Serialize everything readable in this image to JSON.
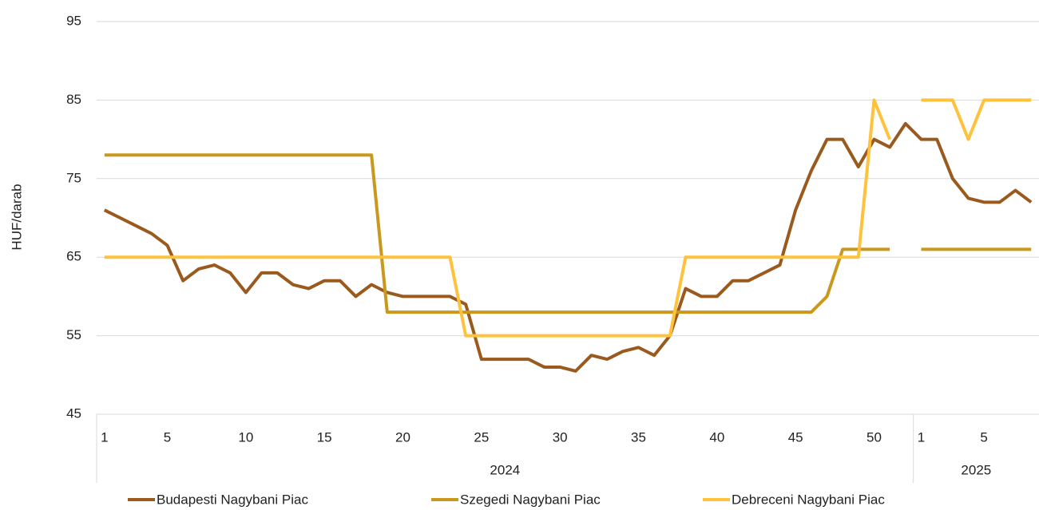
{
  "chart_data": {
    "type": "line",
    "y_label": "HUF/darab",
    "categories": [
      "1",
      null,
      null,
      null,
      "5",
      null,
      null,
      null,
      null,
      "10",
      null,
      null,
      null,
      null,
      "15",
      null,
      null,
      null,
      null,
      "20",
      null,
      null,
      null,
      null,
      "25",
      null,
      null,
      null,
      null,
      "30",
      null,
      null,
      null,
      null,
      "35",
      null,
      null,
      null,
      null,
      "40",
      null,
      null,
      null,
      null,
      "45",
      null,
      null,
      null,
      null,
      "50",
      null,
      null,
      "1",
      null,
      null,
      null,
      "5",
      null,
      null,
      null
    ],
    "x_groups": [
      {
        "label": "2024",
        "span": 52
      },
      {
        "label": "2025",
        "span": 8
      }
    ],
    "series": [
      {
        "name": "Budapesti Nagybani Piac",
        "color": "#9a5a1e",
        "values": [
          71,
          70,
          69,
          68,
          66.5,
          62,
          63.5,
          64,
          63,
          60.5,
          63,
          63,
          61.5,
          61,
          62,
          62,
          60,
          61.5,
          60.5,
          60,
          60,
          60,
          60,
          59,
          52,
          52,
          52,
          52,
          51,
          51,
          50.5,
          52.5,
          52,
          53,
          53.5,
          52.5,
          55,
          61,
          60,
          60,
          62,
          62,
          63,
          64,
          71,
          76,
          80,
          80,
          76.5,
          80,
          79,
          82,
          80,
          80,
          75,
          72.5,
          72,
          72,
          73.5,
          72
        ]
      },
      {
        "name": "Szegedi Nagybani Piac",
        "color": "#c9981c",
        "values": [
          78,
          78,
          78,
          78,
          78,
          78,
          78,
          78,
          78,
          78,
          78,
          78,
          78,
          78,
          78,
          78,
          78,
          78,
          58,
          58,
          58,
          58,
          58,
          58,
          58,
          58,
          58,
          58,
          58,
          58,
          58,
          58,
          58,
          58,
          58,
          58,
          58,
          58,
          58,
          58,
          58,
          58,
          58,
          58,
          58,
          58,
          60,
          66,
          66,
          66,
          66,
          null,
          66,
          66,
          66,
          66,
          66,
          66,
          66,
          66
        ]
      },
      {
        "name": "Debreceni Nagybani Piac",
        "color": "#fec23c",
        "values": [
          65,
          65,
          65,
          65,
          65,
          65,
          65,
          65,
          65,
          65,
          65,
          65,
          65,
          65,
          65,
          65,
          65,
          65,
          65,
          65,
          65,
          65,
          65,
          55,
          55,
          55,
          55,
          55,
          55,
          55,
          55,
          55,
          55,
          55,
          55,
          55,
          55,
          65,
          65,
          65,
          65,
          65,
          65,
          65,
          65,
          65,
          65,
          65,
          65,
          85,
          80,
          null,
          85,
          85,
          85,
          80,
          85,
          85,
          85,
          85
        ]
      }
    ],
    "ylim": [
      45,
      95
    ],
    "yticks": [
      45,
      55,
      65,
      75,
      85,
      95
    ],
    "grid": true,
    "legend": "bottom"
  }
}
